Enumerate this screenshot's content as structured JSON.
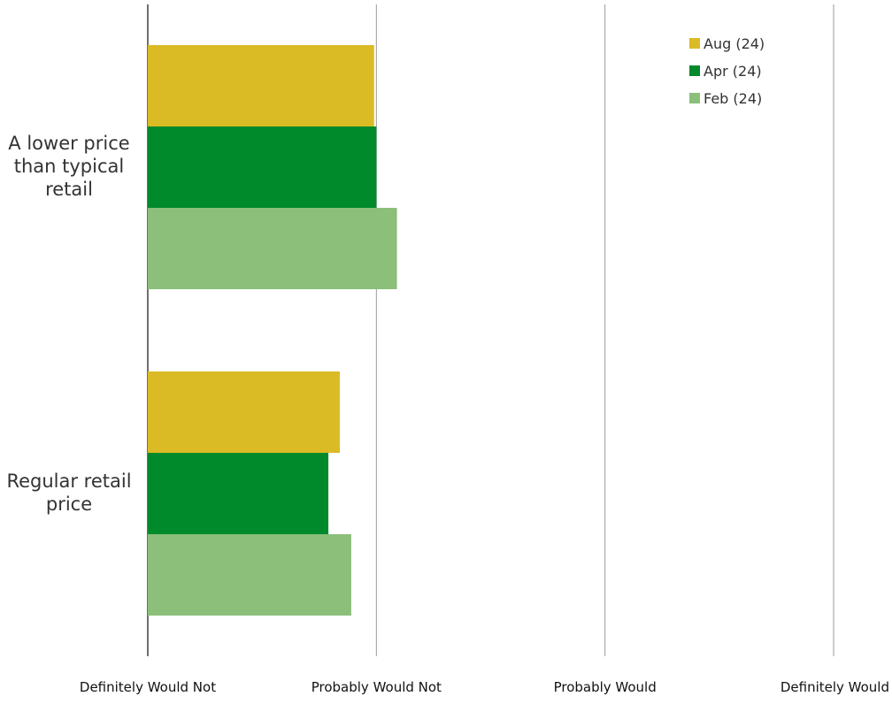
{
  "chart_data": {
    "type": "bar",
    "orientation": "horizontal",
    "categories": [
      [
        "A lower price",
        "than typical",
        "retail"
      ],
      [
        "Regular retail",
        "price"
      ]
    ],
    "series": [
      {
        "name": "Aug (24)",
        "color": "#dbbb25",
        "values": [
          1.99,
          1.84
        ]
      },
      {
        "name": "Apr (24)",
        "color": "#008a2c",
        "values": [
          2.0,
          1.79
        ]
      },
      {
        "name": "Feb (24)",
        "color": "#8bbf7a",
        "values": [
          2.09,
          1.89
        ]
      }
    ],
    "xlim": [
      1,
      4
    ],
    "xticks": [
      1,
      2,
      3,
      4
    ],
    "xticklabels": [
      "Definitely Would Not",
      "Probably Would Not",
      "Probably Would",
      "Definitely Would"
    ],
    "grid": "vertical",
    "legend_position": "top-right"
  }
}
